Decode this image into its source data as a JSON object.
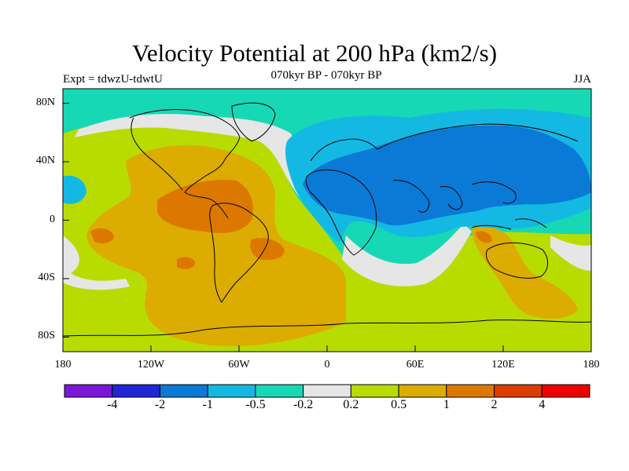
{
  "title": "Velocity Potential at 200 hPa (km2/s)",
  "subtitle": "070kyr BP - 070kyr BP",
  "expt_label": "Expt = tdwzU-tdwtU",
  "season": "JJA",
  "lat_ticks": [
    {
      "value": 80,
      "label": "80N"
    },
    {
      "value": 40,
      "label": "40N"
    },
    {
      "value": 0,
      "label": "0"
    },
    {
      "value": -40,
      "label": "40S"
    },
    {
      "value": -80,
      "label": "80S"
    }
  ],
  "lon_ticks": [
    {
      "value": -180,
      "label": "180"
    },
    {
      "value": -120,
      "label": "120W"
    },
    {
      "value": -60,
      "label": "60W"
    },
    {
      "value": 0,
      "label": "0"
    },
    {
      "value": 60,
      "label": "60E"
    },
    {
      "value": 120,
      "label": "120E"
    },
    {
      "value": 180,
      "label": "180"
    }
  ],
  "colorbar": {
    "colors": [
      "#7a18d6",
      "#2026d6",
      "#0a7ad6",
      "#13b9e2",
      "#17d8b5",
      "#e6e6e6",
      "#b9dc00",
      "#dcac00",
      "#dc7800",
      "#dc3c00",
      "#ee0000"
    ],
    "labels": [
      "-4",
      "-2",
      "-1",
      "-0.5",
      "-0.2",
      "0.2",
      "0.5",
      "1",
      "2",
      "4"
    ]
  },
  "colors": {
    "neg_strong": "#0a7ad6",
    "neg_mid": "#13b9e2",
    "neg_weak": "#17d8b5",
    "neutral": "#e6e6e6",
    "pos_weak": "#b9dc00",
    "pos_mid": "#dcac00",
    "pos_strong": "#dc7800",
    "coast": "#000000"
  }
}
